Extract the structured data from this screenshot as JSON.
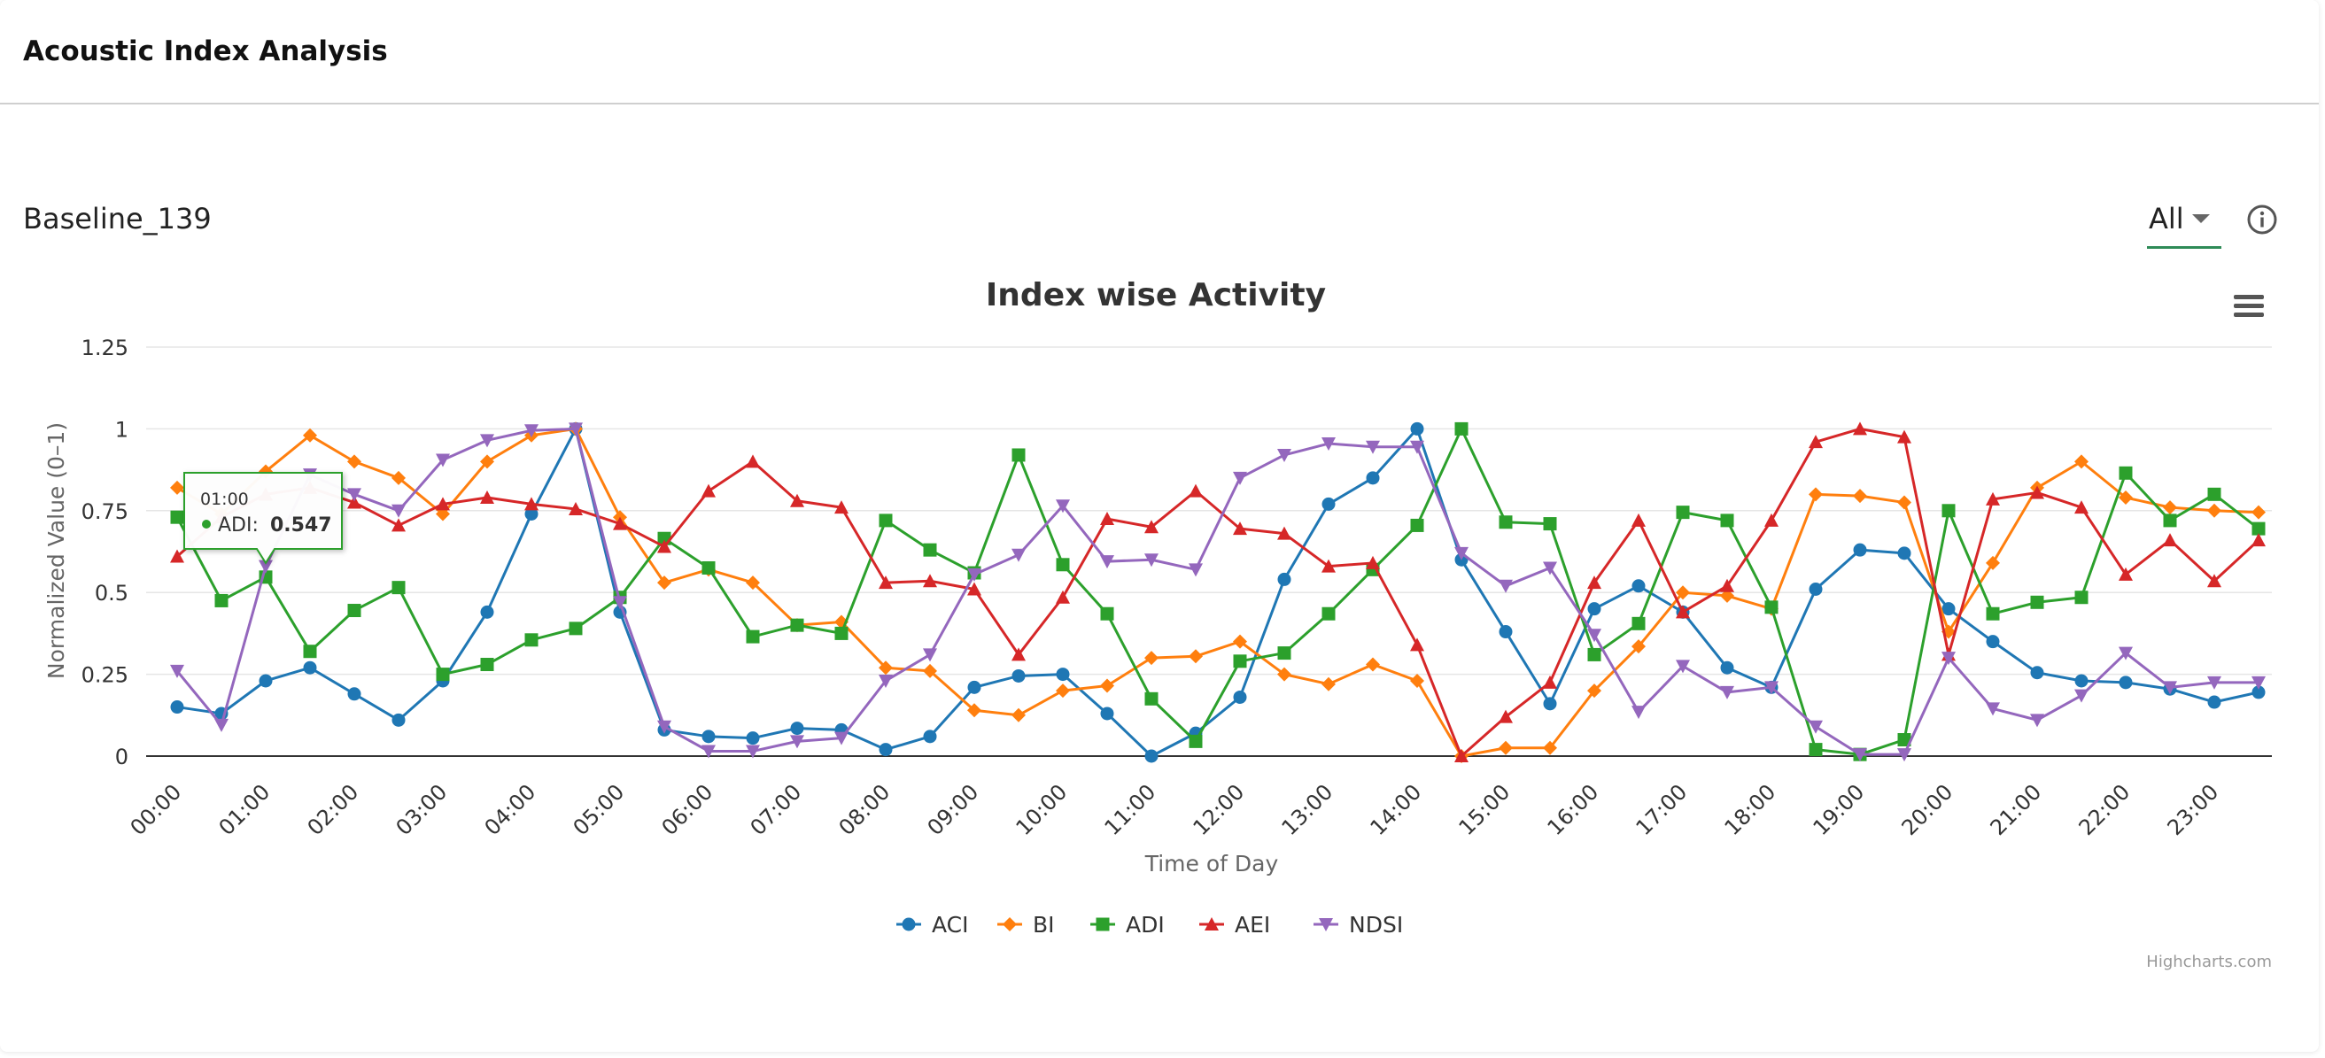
{
  "header": {
    "title": "Acoustic Index Analysis"
  },
  "panel": {
    "subtitle": "Baseline_139",
    "filter_value": "All"
  },
  "tooltip": {
    "time": "01:00",
    "series": "ADI",
    "value": "0.547"
  },
  "credits": "Highcharts.com",
  "chart_data": {
    "type": "line",
    "title": "Index wise Activity",
    "xlabel": "Time of Day",
    "ylabel": "Normalized Value (0–1)",
    "ylim": [
      0,
      1.25
    ],
    "yticks": [
      0,
      0.25,
      0.5,
      0.75,
      1,
      1.25
    ],
    "ytick_labels": [
      "0",
      "0.25",
      "0.5",
      "0.75",
      "1",
      "1.25"
    ],
    "x": [
      "00:00",
      "00:30",
      "01:00",
      "01:30",
      "02:00",
      "02:30",
      "03:00",
      "03:30",
      "04:00",
      "04:30",
      "05:00",
      "05:30",
      "06:00",
      "06:30",
      "07:00",
      "07:30",
      "08:00",
      "08:30",
      "09:00",
      "09:30",
      "10:00",
      "10:30",
      "11:00",
      "11:30",
      "12:00",
      "12:30",
      "13:00",
      "13:30",
      "14:00",
      "14:30",
      "15:00",
      "15:30",
      "16:00",
      "16:30",
      "17:00",
      "17:30",
      "18:00",
      "18:30",
      "19:00",
      "19:30",
      "20:00",
      "20:30",
      "21:00",
      "21:30",
      "22:00",
      "22:30",
      "23:00",
      "23:30"
    ],
    "xtick_labels": [
      "00:00",
      "01:00",
      "02:00",
      "03:00",
      "04:00",
      "05:00",
      "06:00",
      "07:00",
      "08:00",
      "09:00",
      "10:00",
      "11:00",
      "12:00",
      "13:00",
      "14:00",
      "15:00",
      "16:00",
      "17:00",
      "18:00",
      "19:00",
      "20:00",
      "21:00",
      "22:00",
      "23:00"
    ],
    "grid": true,
    "legend_position": "bottom-center",
    "series": [
      {
        "name": "ACI",
        "color": "#1f77b4",
        "marker": "circle",
        "values": [
          0.15,
          0.13,
          0.23,
          0.27,
          0.19,
          0.11,
          0.23,
          0.44,
          0.74,
          1.0,
          0.44,
          0.08,
          0.06,
          0.055,
          0.085,
          0.08,
          0.02,
          0.06,
          0.21,
          0.245,
          0.25,
          0.13,
          0.0,
          0.07,
          0.18,
          0.54,
          0.77,
          0.85,
          1.0,
          0.6,
          0.38,
          0.16,
          0.45,
          0.52,
          0.44,
          0.27,
          0.21,
          0.51,
          0.63,
          0.62,
          0.45,
          0.35,
          0.255,
          0.23,
          0.225,
          0.205,
          0.165,
          0.195
        ]
      },
      {
        "name": "BI",
        "color": "#ff7f0e",
        "marker": "diamond",
        "values": [
          0.82,
          0.74,
          0.87,
          0.98,
          0.9,
          0.85,
          0.74,
          0.9,
          0.98,
          1.0,
          0.73,
          0.53,
          0.57,
          0.53,
          0.4,
          0.41,
          0.27,
          0.26,
          0.14,
          0.125,
          0.2,
          0.215,
          0.3,
          0.305,
          0.35,
          0.25,
          0.22,
          0.28,
          0.23,
          0.0,
          0.025,
          0.025,
          0.2,
          0.335,
          0.5,
          0.49,
          0.45,
          0.8,
          0.795,
          0.775,
          0.38,
          0.59,
          0.82,
          0.9,
          0.79,
          0.76,
          0.75,
          0.745
        ]
      },
      {
        "name": "ADI",
        "color": "#2ca02c",
        "marker": "square",
        "values": [
          0.73,
          0.475,
          0.547,
          0.32,
          0.445,
          0.515,
          0.25,
          0.28,
          0.355,
          0.39,
          0.485,
          0.665,
          0.575,
          0.365,
          0.4,
          0.375,
          0.72,
          0.63,
          0.56,
          0.92,
          0.585,
          0.435,
          0.175,
          0.045,
          0.29,
          0.315,
          0.435,
          0.57,
          0.705,
          1.0,
          0.715,
          0.71,
          0.31,
          0.405,
          0.745,
          0.72,
          0.455,
          0.02,
          0.005,
          0.05,
          0.75,
          0.435,
          0.47,
          0.485,
          0.865,
          0.72,
          0.8,
          0.695
        ]
      },
      {
        "name": "AEI",
        "color": "#d62728",
        "marker": "triangle",
        "values": [
          0.61,
          0.73,
          0.8,
          0.82,
          0.775,
          0.705,
          0.77,
          0.79,
          0.77,
          0.755,
          0.71,
          0.64,
          0.81,
          0.9,
          0.78,
          0.76,
          0.53,
          0.535,
          0.51,
          0.31,
          0.485,
          0.725,
          0.7,
          0.81,
          0.695,
          0.68,
          0.58,
          0.59,
          0.34,
          0.0,
          0.12,
          0.225,
          0.53,
          0.72,
          0.44,
          0.52,
          0.72,
          0.96,
          1.0,
          0.975,
          0.31,
          0.785,
          0.805,
          0.76,
          0.555,
          0.66,
          0.535,
          0.66
        ]
      },
      {
        "name": "NDSI",
        "color": "#9467bd",
        "marker": "triangle-down",
        "values": [
          0.26,
          0.095,
          0.58,
          0.86,
          0.8,
          0.75,
          0.905,
          0.965,
          0.995,
          1.0,
          0.47,
          0.09,
          0.015,
          0.015,
          0.045,
          0.055,
          0.23,
          0.31,
          0.555,
          0.615,
          0.765,
          0.595,
          0.6,
          0.57,
          0.85,
          0.92,
          0.955,
          0.945,
          0.945,
          0.62,
          0.52,
          0.575,
          0.37,
          0.135,
          0.275,
          0.195,
          0.21,
          0.09,
          0.005,
          0.005,
          0.3,
          0.145,
          0.11,
          0.185,
          0.315,
          0.21,
          0.225,
          0.225
        ]
      }
    ]
  }
}
